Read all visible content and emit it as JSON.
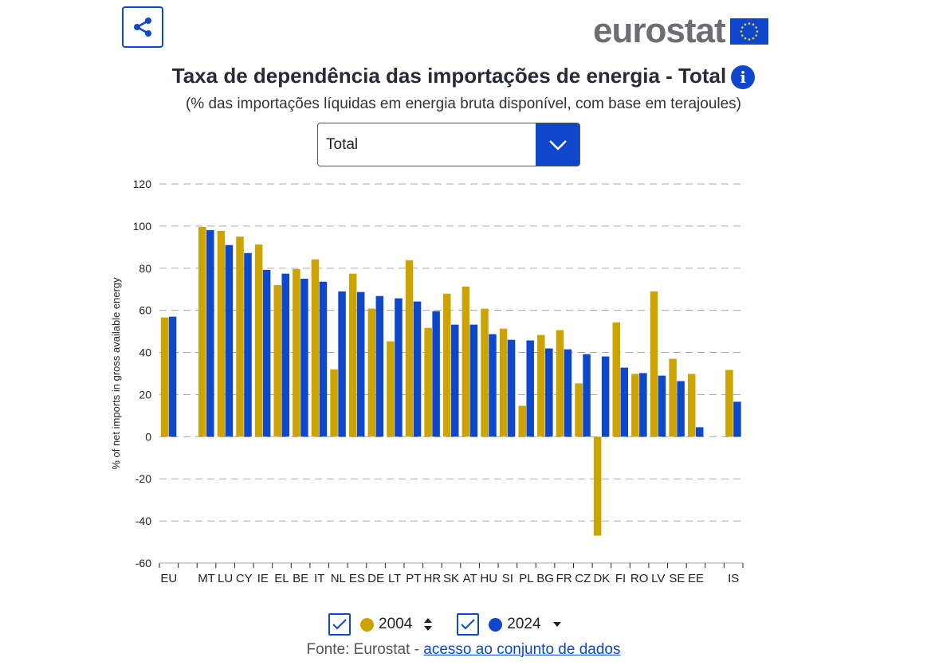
{
  "logo": "eurostat",
  "title": "Taxa de dependência das importações de energia - Total",
  "subtitle": "(% das importações líquidas em energia bruta disponível, com base em terajoules)",
  "select": {
    "value": "Total"
  },
  "colors": {
    "s2004": "#cca300",
    "s2024": "#0e47cb",
    "accent": "#0e47cb"
  },
  "chart_data": {
    "type": "bar",
    "ylabel": "% of net imports in gross available energy",
    "ylim": [
      -60,
      120
    ],
    "yticks": [
      120,
      100,
      80,
      60,
      40,
      20,
      0,
      -20,
      -40,
      -60
    ],
    "grid": true,
    "categories": [
      "EU",
      "",
      "MT",
      "LU",
      "CY",
      "IE",
      "EL",
      "BE",
      "IT",
      "NL",
      "ES",
      "DE",
      "LT",
      "PT",
      "HR",
      "SK",
      "AT",
      "HU",
      "SI",
      "PL",
      "BG",
      "FR",
      "CZ",
      "DK",
      "FI",
      "RO",
      "LV",
      "SE",
      "EE",
      "",
      "IS"
    ],
    "series": [
      {
        "name": "2004",
        "values": [
          56.6,
          null,
          99.6,
          97.7,
          95,
          91.3,
          72,
          79.6,
          84.2,
          32,
          77.4,
          60.8,
          45.3,
          83.8,
          51.7,
          67.9,
          71.3,
          60.8,
          51.3,
          14.7,
          48.3,
          50.6,
          25.3,
          -47,
          54.3,
          29.8,
          69,
          37,
          29.8,
          null,
          31.7
        ]
      },
      {
        "name": "2024",
        "values": [
          57,
          null,
          98.1,
          91,
          87.2,
          79.2,
          77.4,
          75,
          73.6,
          69,
          68.7,
          66.8,
          65.7,
          64.2,
          59.6,
          53.2,
          53.2,
          48.7,
          46,
          45.7,
          41.9,
          41.5,
          39.2,
          38.1,
          32.8,
          30.2,
          29,
          26.4,
          4.5,
          null,
          16.6
        ]
      }
    ],
    "legend": "bottom"
  },
  "source": {
    "prefix": "Fonte: Eurostat - ",
    "link": "acesso ao conjunto de dados"
  }
}
